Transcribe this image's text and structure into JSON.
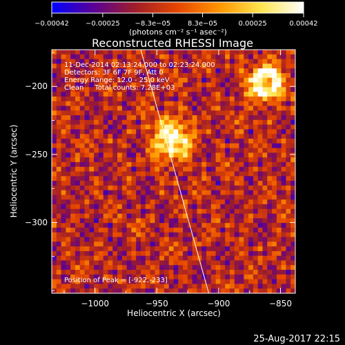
{
  "chart_data": {
    "type": "heatmap",
    "title": "Reconstructed RHESSI Image",
    "xlabel": "Heliocentric X (arcsec)",
    "ylabel": "Heliocentric Y (arcsec)",
    "xlim": [
      -1035,
      -838
    ],
    "ylim": [
      -352,
      -173
    ],
    "xticks": [
      -1000,
      -950,
      -900,
      -850
    ],
    "yticks": [
      -200,
      -250,
      -300
    ],
    "colorbar": {
      "range": [
        -0.00042,
        0.00042
      ],
      "ticks": [
        -0.00042,
        -0.00025,
        -8.3e-05,
        8.3e-05,
        0.00025,
        0.00042
      ],
      "tick_labels": [
        "-0.00042",
        "-0.00025",
        "-8.3e-05",
        "8.3e-05",
        "0.00025",
        "0.00042"
      ],
      "unit_label": "(photons cm⁻² s⁻¹ asec⁻²)",
      "colors": [
        "#0000ff",
        "#5a0096",
        "#a01e28",
        "#e64600",
        "#ff9600",
        "#ffe650",
        "#ffffff"
      ]
    },
    "annotations": [
      "11-Dec-2014 02:13:24.000 to 02:23:24.000",
      "Detectors: 3F 6F 7F 9F, Att 0",
      "Energy Range: 12.0 - 25.0 keV",
      "Clean     Total counts: 7.28E+03"
    ],
    "peak_label": "Position of Peak = [-922,-233]",
    "peak": [
      -922,
      -233
    ],
    "limb_line": [
      [
        -963,
        -173
      ],
      [
        -908,
        -352
      ]
    ],
    "sources": [
      {
        "x": -938,
        "y": -240,
        "strength": 1.0
      },
      {
        "x": -862,
        "y": -197,
        "strength": 0.75
      }
    ],
    "timestamp": "25-Aug-2017 22:15"
  }
}
